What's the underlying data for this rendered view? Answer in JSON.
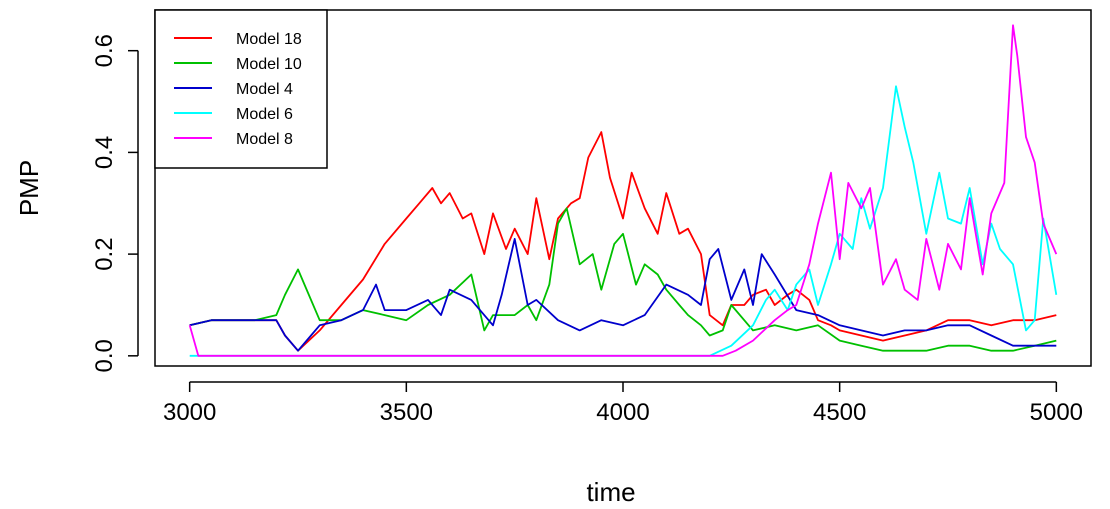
{
  "chart_data": {
    "type": "line",
    "title": "",
    "xlabel": "time",
    "ylabel": "PMP",
    "xlim": [
      2920,
      5080
    ],
    "ylim": [
      -0.02,
      0.68
    ],
    "x_ticks": [
      3000,
      3500,
      4000,
      4500,
      5000
    ],
    "x_tick_labels": [
      "3000",
      "3500",
      "4000",
      "4500",
      "5000"
    ],
    "y_ticks": [
      0.0,
      0.2,
      0.4,
      0.6
    ],
    "y_tick_labels": [
      "0.0",
      "0.2",
      "0.4",
      "0.6"
    ],
    "grid": false,
    "legend_position": "top-left",
    "series": [
      {
        "name": "Model 18",
        "color": "#ff0000",
        "x": [
          3000,
          3050,
          3100,
          3150,
          3200,
          3220,
          3250,
          3300,
          3350,
          3400,
          3450,
          3500,
          3530,
          3560,
          3580,
          3600,
          3630,
          3650,
          3680,
          3700,
          3730,
          3750,
          3780,
          3800,
          3830,
          3850,
          3880,
          3900,
          3920,
          3950,
          3970,
          4000,
          4020,
          4050,
          4080,
          4100,
          4130,
          4150,
          4180,
          4200,
          4230,
          4250,
          4280,
          4300,
          4330,
          4350,
          4380,
          4400,
          4430,
          4450,
          4480,
          4500,
          4550,
          4600,
          4650,
          4700,
          4750,
          4800,
          4850,
          4900,
          4950,
          5000
        ],
        "y": [
          0.06,
          0.07,
          0.07,
          0.07,
          0.07,
          0.04,
          0.01,
          0.05,
          0.1,
          0.15,
          0.22,
          0.27,
          0.3,
          0.33,
          0.3,
          0.32,
          0.27,
          0.28,
          0.2,
          0.28,
          0.21,
          0.25,
          0.2,
          0.31,
          0.19,
          0.27,
          0.3,
          0.31,
          0.39,
          0.44,
          0.35,
          0.27,
          0.36,
          0.29,
          0.24,
          0.32,
          0.24,
          0.25,
          0.2,
          0.08,
          0.06,
          0.1,
          0.1,
          0.12,
          0.13,
          0.1,
          0.12,
          0.13,
          0.11,
          0.07,
          0.06,
          0.05,
          0.04,
          0.03,
          0.04,
          0.05,
          0.07,
          0.07,
          0.06,
          0.07,
          0.07,
          0.08
        ]
      },
      {
        "name": "Model 10",
        "color": "#00c000",
        "x": [
          3000,
          3050,
          3100,
          3150,
          3200,
          3220,
          3250,
          3280,
          3300,
          3350,
          3400,
          3450,
          3500,
          3550,
          3600,
          3650,
          3680,
          3700,
          3750,
          3780,
          3800,
          3830,
          3850,
          3870,
          3900,
          3930,
          3950,
          3980,
          4000,
          4030,
          4050,
          4080,
          4100,
          4130,
          4150,
          4180,
          4200,
          4230,
          4250,
          4300,
          4350,
          4400,
          4450,
          4500,
          4550,
          4600,
          4650,
          4700,
          4750,
          4800,
          4850,
          4900,
          4950,
          5000
        ],
        "y": [
          0.06,
          0.07,
          0.07,
          0.07,
          0.08,
          0.12,
          0.17,
          0.11,
          0.07,
          0.07,
          0.09,
          0.08,
          0.07,
          0.1,
          0.12,
          0.16,
          0.05,
          0.08,
          0.08,
          0.1,
          0.07,
          0.14,
          0.26,
          0.29,
          0.18,
          0.2,
          0.13,
          0.22,
          0.24,
          0.14,
          0.18,
          0.16,
          0.13,
          0.1,
          0.08,
          0.06,
          0.04,
          0.05,
          0.1,
          0.05,
          0.06,
          0.05,
          0.06,
          0.03,
          0.02,
          0.01,
          0.01,
          0.01,
          0.02,
          0.02,
          0.01,
          0.01,
          0.02,
          0.03
        ]
      },
      {
        "name": "Model 4",
        "color": "#0000cc",
        "x": [
          3000,
          3050,
          3100,
          3150,
          3200,
          3220,
          3250,
          3280,
          3300,
          3350,
          3400,
          3430,
          3450,
          3500,
          3550,
          3580,
          3600,
          3650,
          3700,
          3720,
          3750,
          3780,
          3800,
          3850,
          3900,
          3950,
          4000,
          4050,
          4100,
          4150,
          4180,
          4200,
          4220,
          4250,
          4280,
          4300,
          4320,
          4350,
          4400,
          4450,
          4500,
          4550,
          4600,
          4650,
          4700,
          4750,
          4800,
          4850,
          4900,
          4950,
          5000
        ],
        "y": [
          0.06,
          0.07,
          0.07,
          0.07,
          0.07,
          0.04,
          0.01,
          0.04,
          0.06,
          0.07,
          0.09,
          0.14,
          0.09,
          0.09,
          0.11,
          0.08,
          0.13,
          0.11,
          0.06,
          0.12,
          0.23,
          0.1,
          0.11,
          0.07,
          0.05,
          0.07,
          0.06,
          0.08,
          0.14,
          0.12,
          0.1,
          0.19,
          0.21,
          0.11,
          0.17,
          0.1,
          0.2,
          0.16,
          0.09,
          0.08,
          0.06,
          0.05,
          0.04,
          0.05,
          0.05,
          0.06,
          0.06,
          0.04,
          0.02,
          0.02,
          0.02
        ]
      },
      {
        "name": "Model 6",
        "color": "#00ffff",
        "x": [
          3000,
          3100,
          3200,
          3300,
          3400,
          3500,
          3600,
          3700,
          3800,
          3900,
          4000,
          4100,
          4200,
          4250,
          4300,
          4330,
          4350,
          4380,
          4400,
          4430,
          4450,
          4480,
          4500,
          4530,
          4550,
          4570,
          4600,
          4630,
          4650,
          4670,
          4700,
          4730,
          4750,
          4780,
          4800,
          4830,
          4850,
          4870,
          4900,
          4930,
          4950,
          4970,
          5000
        ],
        "y": [
          0.0,
          0.0,
          0.0,
          0.0,
          0.0,
          0.0,
          0.0,
          0.0,
          0.0,
          0.0,
          0.0,
          0.0,
          0.0,
          0.02,
          0.06,
          0.11,
          0.13,
          0.09,
          0.14,
          0.17,
          0.1,
          0.18,
          0.24,
          0.21,
          0.31,
          0.25,
          0.33,
          0.53,
          0.45,
          0.38,
          0.24,
          0.36,
          0.27,
          0.26,
          0.33,
          0.18,
          0.26,
          0.21,
          0.18,
          0.05,
          0.07,
          0.27,
          0.12
        ]
      },
      {
        "name": "Model 8",
        "color": "#ff00ff",
        "x": [
          3000,
          3020,
          3050,
          3100,
          3200,
          3300,
          3400,
          3500,
          3600,
          3700,
          3800,
          3900,
          4000,
          4100,
          4200,
          4230,
          4260,
          4300,
          4350,
          4380,
          4400,
          4430,
          4450,
          4480,
          4500,
          4520,
          4550,
          4570,
          4600,
          4630,
          4650,
          4680,
          4700,
          4730,
          4750,
          4780,
          4800,
          4830,
          4850,
          4880,
          4900,
          4910,
          4930,
          4950,
          4970,
          5000
        ],
        "y": [
          0.06,
          0.0,
          0.0,
          0.0,
          0.0,
          0.0,
          0.0,
          0.0,
          0.0,
          0.0,
          0.0,
          0.0,
          0.0,
          0.0,
          0.0,
          0.0,
          0.01,
          0.03,
          0.07,
          0.09,
          0.1,
          0.18,
          0.26,
          0.36,
          0.19,
          0.34,
          0.29,
          0.33,
          0.14,
          0.19,
          0.13,
          0.11,
          0.23,
          0.13,
          0.22,
          0.17,
          0.31,
          0.16,
          0.28,
          0.34,
          0.65,
          0.59,
          0.43,
          0.38,
          0.26,
          0.2
        ]
      }
    ]
  }
}
